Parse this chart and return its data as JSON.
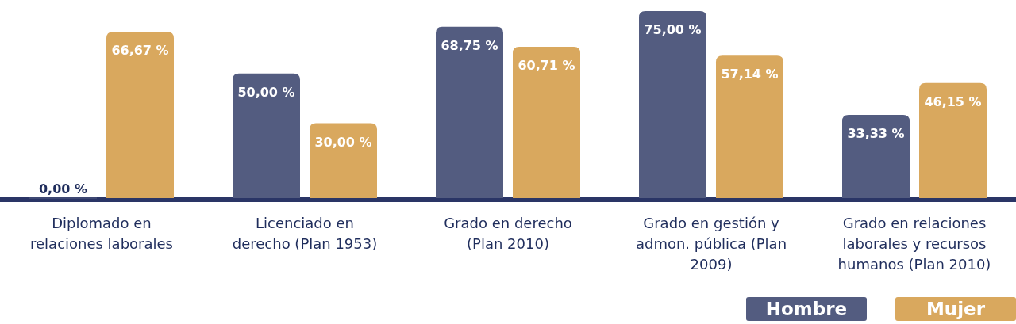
{
  "chart_data": {
    "type": "bar",
    "categories": [
      "Diplomado en relaciones laborales",
      "Licenciado en derecho (Plan 1953)",
      "Grado en derecho (Plan 2010)",
      "Grado en gestión y admon. pública (Plan 2009)",
      "Grado en relaciones laborales y recursos humanos (Plan 2010)"
    ],
    "series": [
      {
        "name": "Hombre",
        "color": "#535c80",
        "values": [
          0,
          50,
          68.75,
          75,
          33.33
        ],
        "value_labels": [
          "0,00 %",
          "50,00 %",
          "68,75 %",
          "75,00 %",
          "33,33 %"
        ]
      },
      {
        "name": "Mujer",
        "color": "#d9a85e",
        "values": [
          66.67,
          30,
          60.71,
          57.14,
          46.15
        ],
        "value_labels": [
          "66,67 %",
          "30,00 %",
          "60,71 %",
          "57,14 %",
          "46,15 %"
        ]
      }
    ],
    "legend": "bottom right"
  }
}
